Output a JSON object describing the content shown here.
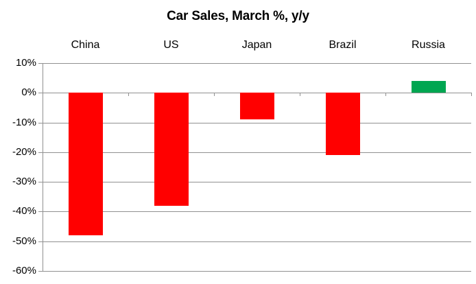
{
  "chart_data": {
    "type": "bar",
    "title": "Car Sales, March %, y/y",
    "categories": [
      "China",
      "US",
      "Japan",
      "Brazil",
      "Russia"
    ],
    "values": [
      -48,
      -38,
      -9,
      -21,
      4
    ],
    "bar_colors": [
      "#FF0000",
      "#FF0000",
      "#FF0000",
      "#FF0000",
      "#00A651"
    ],
    "negative_color": "#FF0000",
    "positive_color": "#00A651",
    "xlabel": "",
    "ylabel": "",
    "ylim": [
      -60,
      10
    ],
    "y_ticks": [
      10,
      0,
      -10,
      -20,
      -30,
      -40,
      -50,
      -60
    ],
    "y_tick_labels": [
      "10%",
      "0%",
      "-10%",
      "-20%",
      "-30%",
      "-40%",
      "-50%",
      "-60%"
    ],
    "grid": true,
    "gridline_color": "#909090",
    "axis_color": "#909090",
    "text_color": "#000000",
    "legend": "none"
  }
}
